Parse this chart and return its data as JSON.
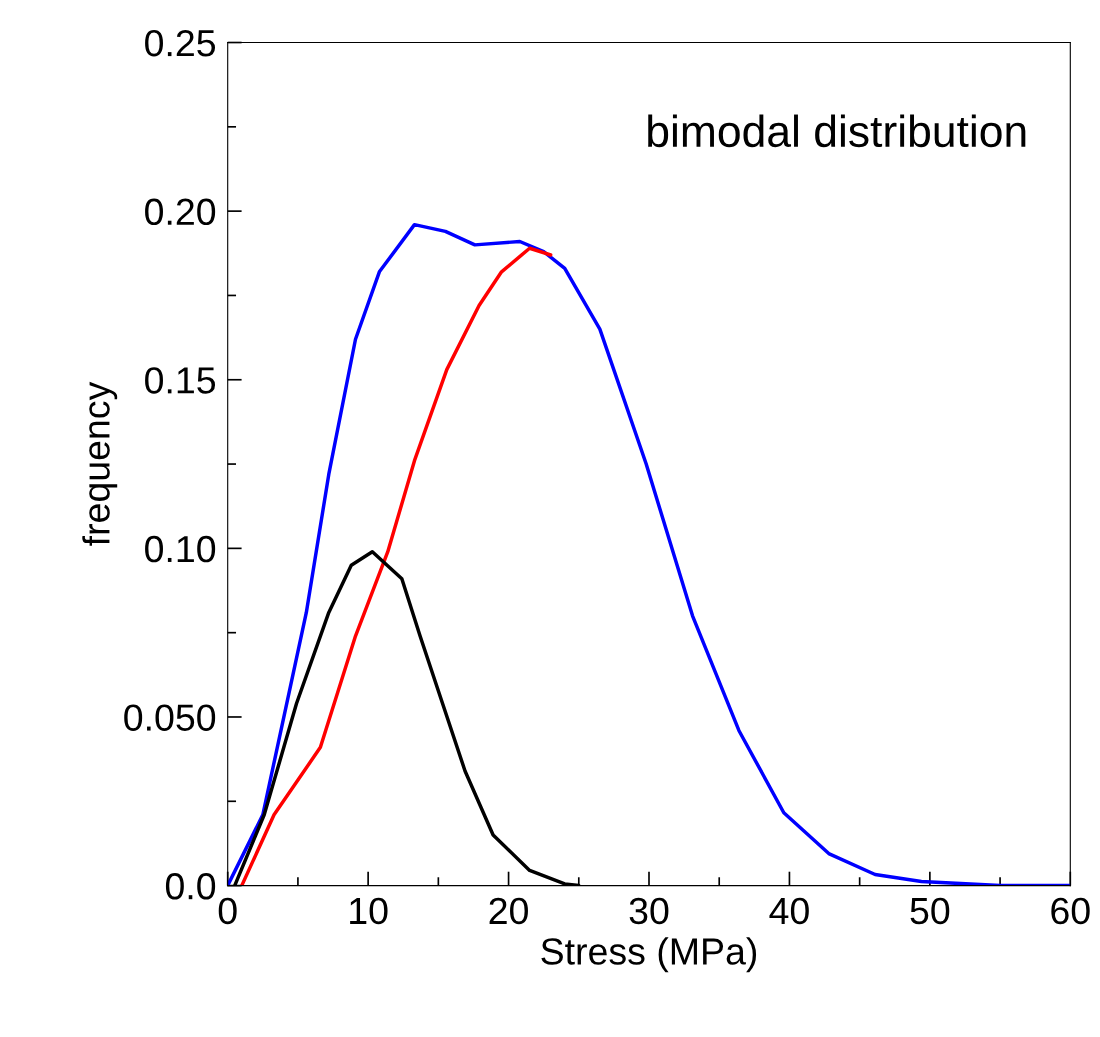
{
  "chart_data": {
    "type": "line",
    "xlabel": "Stress (MPa)",
    "ylabel": "frequency",
    "annotations": [
      "bimodal distribution"
    ],
    "series": [
      {
        "color": "#0000ff",
        "x": [
          0,
          2.5,
          5.6,
          7.2,
          9.1,
          10.8,
          13.3,
          15.5,
          17.6,
          20.8,
          22.5,
          24,
          26.5,
          29.8,
          33.1,
          36.4,
          39.6,
          42.8,
          46.1,
          49.4,
          55,
          60
        ],
        "values": [
          0,
          0.021,
          0.081,
          0.122,
          0.162,
          0.182,
          0.196,
          0.194,
          0.19,
          0.191,
          0.188,
          0.183,
          0.165,
          0.125,
          0.08,
          0.046,
          0.0216,
          0.0095,
          0.0033,
          0.0012,
          0,
          0
        ]
      },
      {
        "color": "#ff0000",
        "x": [
          1,
          3.3,
          6.6,
          9.1,
          11.4,
          13.3,
          15.6,
          17.9,
          19.5,
          21.5,
          23
        ],
        "values": [
          0,
          0.021,
          0.041,
          0.074,
          0.099,
          0.126,
          0.153,
          0.172,
          0.182,
          0.189,
          0.187
        ]
      },
      {
        "color": "#000000",
        "x": [
          0.5,
          2.6,
          4.9,
          7.2,
          8.8,
          10.3,
          12.4,
          13.7,
          15.3,
          16.9,
          18.9,
          21.5,
          24,
          25
        ],
        "values": [
          0,
          0.021,
          0.054,
          0.081,
          0.095,
          0.099,
          0.091,
          0.074,
          0.054,
          0.034,
          0.015,
          0.0045,
          0.0005,
          0
        ]
      }
    ],
    "xlim": [
      0,
      60
    ],
    "ylim": [
      0,
      0.25
    ],
    "xticks": [
      0,
      {
        "value": 5,
        "label": null
      },
      10,
      {
        "value": 15,
        "label": null
      },
      20,
      {
        "value": 25,
        "label": null
      },
      30,
      {
        "value": 35,
        "label": null
      },
      40,
      {
        "value": 45,
        "label": null
      },
      50,
      {
        "value": 55,
        "label": null
      },
      60
    ],
    "yticks": [
      {
        "value": 0,
        "label": "0.0"
      },
      {
        "value": 0.025,
        "label": null
      },
      {
        "value": 0.05,
        "label": "0.050"
      },
      {
        "value": 0.075,
        "label": null
      },
      {
        "value": 0.1,
        "label": "0.10"
      },
      {
        "value": 0.125,
        "label": null
      },
      {
        "value": 0.15,
        "label": "0.15"
      },
      {
        "value": 0.175,
        "label": null
      },
      {
        "value": 0.2,
        "label": "0.20"
      },
      {
        "value": 0.225,
        "label": null
      },
      {
        "value": 0.25,
        "label": "0.25"
      }
    ],
    "grid": false,
    "legend": false
  }
}
